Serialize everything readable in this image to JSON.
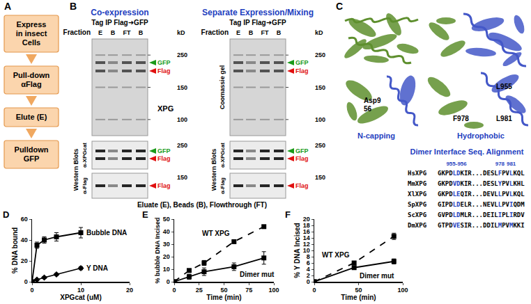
{
  "panel_A": {
    "panel": "A",
    "steps": [
      [
        "Express",
        "in insect",
        "Cells"
      ],
      [
        "Pull-down",
        "αFlag"
      ],
      [
        "Elute (E)"
      ],
      [
        "Pulldown",
        "GFP"
      ]
    ]
  },
  "panel_B": {
    "panel": "B",
    "gels": [
      {
        "title": "Co-expression",
        "tag": "Tag IP Flag➜GFP",
        "fraction": "Fraction",
        "lanes": [
          "E",
          "B",
          "FT",
          "B"
        ],
        "kd_unit": "kD",
        "protein": "XPG",
        "coomassie": {
          "markers": [
            250,
            150,
            100
          ],
          "bands": [
            {
              "name": "GFP",
              "color": "#1a9a1a"
            },
            {
              "name": "Flag",
              "color": "#e01010"
            }
          ]
        },
        "blot_group": "Western Blots",
        "blots": [
          {
            "antibody": "α-XPGcat",
            "markers": [
              250
            ],
            "bands": [
              {
                "name": "GFP",
                "color": "#1a9a1a"
              },
              {
                "name": "Flag",
                "color": "#e01010"
              }
            ]
          },
          {
            "antibody": "α-Flag",
            "markers": [
              150
            ],
            "bands": [
              {
                "name": "Flag",
                "color": "#e01010"
              }
            ]
          }
        ]
      },
      {
        "title": "Separate Expression/Mixing",
        "tag": "Tag IP Flag➜GFP",
        "fraction": "Fraction",
        "lanes": [
          "E",
          "B",
          "FT",
          "B"
        ],
        "kd_unit": "kD",
        "stain": "Coomassie gel",
        "coomassie": {
          "markers": [
            250,
            150,
            100
          ],
          "bands": [
            {
              "name": "GFP",
              "color": "#1a9a1a"
            },
            {
              "name": "Flag",
              "color": "#e01010"
            }
          ]
        },
        "blot_group": "Western Blots",
        "blots": [
          {
            "antibody": "α-XPGcat",
            "markers": [
              250
            ],
            "bands": [
              {
                "name": "GFP",
                "color": "#1a9a1a"
              },
              {
                "name": "Flag",
                "color": "#e01010"
              }
            ]
          },
          {
            "antibody": "α-Flag",
            "markers": [
              150
            ],
            "bands": [
              {
                "name": "Flag",
                "color": "#e01010"
              }
            ]
          }
        ]
      }
    ],
    "caption": "Eluate (E), Beads (B), Flowthrough (FT)"
  },
  "panel_C": {
    "panel": "C",
    "residue_left": [
      "Asp9",
      "56"
    ],
    "residues_right": [
      "L955",
      "F978",
      "L981"
    ],
    "views": [
      "N-capping",
      "Hydrophobic"
    ],
    "alignment_title": "Dimer Interface Seq. Alignment",
    "positions": [
      "955-956",
      "978",
      "981"
    ],
    "sequences": [
      {
        "name": "HsXPG",
        "segments": [
          {
            "t": "GKPD"
          },
          {
            "t": "LD",
            "highlight": true
          },
          {
            "t": "KIR...DESL"
          },
          {
            "t": "F",
            "highlight": true
          },
          {
            "t": "PV"
          },
          {
            "t": "L",
            "highlight": true
          },
          {
            "t": "KQL"
          }
        ]
      },
      {
        "name": "MmXPG",
        "segments": [
          {
            "t": "GKPD"
          },
          {
            "t": "VD",
            "highlight": true
          },
          {
            "t": "KIR...DESL"
          },
          {
            "t": "Y",
            "highlight": true
          },
          {
            "t": "PV"
          },
          {
            "t": "L",
            "highlight": true
          },
          {
            "t": "KHL"
          }
        ]
      },
      {
        "name": "XlXPG",
        "segments": [
          {
            "t": "GKPD"
          },
          {
            "t": "LE",
            "highlight": true
          },
          {
            "t": "QIR...DEVL"
          },
          {
            "t": "L",
            "highlight": true
          },
          {
            "t": "PV"
          },
          {
            "t": "L",
            "highlight": true
          },
          {
            "t": "KQL"
          }
        ]
      },
      {
        "name": "SpXPG",
        "segments": [
          {
            "t": "GIPD"
          },
          {
            "t": "LD",
            "highlight": true
          },
          {
            "t": "ELR...NEVL"
          },
          {
            "t": "L",
            "highlight": true
          },
          {
            "t": "PV"
          },
          {
            "t": "I",
            "highlight": true
          },
          {
            "t": "QDM"
          }
        ]
      },
      {
        "name": "ScXPG",
        "segments": [
          {
            "t": "GVPD"
          },
          {
            "t": "LD",
            "highlight": true
          },
          {
            "t": "MLR...DEIL"
          },
          {
            "t": "I",
            "highlight": true
          },
          {
            "t": "PL"
          },
          {
            "t": "I",
            "highlight": true
          },
          {
            "t": "RDV"
          }
        ]
      },
      {
        "name": "DmXPG",
        "segments": [
          {
            "t": "GTPD"
          },
          {
            "t": "VE",
            "highlight": true
          },
          {
            "t": "SIR...DDIL"
          },
          {
            "t": "M",
            "highlight": true
          },
          {
            "t": "PV"
          },
          {
            "t": "M",
            "highlight": true
          },
          {
            "t": "KKI"
          }
        ]
      }
    ]
  },
  "chart_data": [
    {
      "panel": "D",
      "type": "scatter",
      "xlabel": "XPGcat (uM)",
      "ylabel": "% DNA bound",
      "x": [
        0,
        1,
        2.5,
        5,
        10
      ],
      "xlim": [
        0,
        20
      ],
      "xticks": [
        0,
        10,
        20
      ],
      "ylim": [
        0,
        60
      ],
      "yticks": [
        0,
        20,
        40,
        60
      ],
      "grid": false,
      "series": [
        {
          "name": "Bubble DNA",
          "color": "#000000",
          "marker": "square",
          "line_style": "solid",
          "values": [
            0,
            35,
            40,
            43,
            47
          ],
          "errors": [
            0,
            3,
            3,
            4,
            5
          ]
        },
        {
          "name": "Y DNA",
          "color": "#000000",
          "marker": "diamond",
          "line_style": "solid",
          "values": [
            0,
            2,
            4,
            7,
            13
          ],
          "errors": [
            0,
            0.5,
            1,
            1,
            1.5
          ]
        }
      ]
    },
    {
      "panel": "E",
      "type": "scatter",
      "xlabel": "Time (min)",
      "ylabel": "% bubble DNA Incised",
      "x": [
        0,
        15,
        30,
        60,
        90
      ],
      "xlim": [
        0,
        100
      ],
      "xticks": [
        0,
        25,
        50,
        75,
        100
      ],
      "ylim": [
        0,
        50
      ],
      "yticks": [
        0,
        10,
        20,
        30,
        40,
        50
      ],
      "grid": false,
      "series": [
        {
          "name": "WT XPG",
          "color": "#000000",
          "marker": "square",
          "line_style": "dash",
          "values": [
            0,
            9,
            15,
            32,
            44
          ],
          "errors": [
            0,
            1,
            2,
            1,
            1
          ]
        },
        {
          "name": "Dimer mut",
          "color": "#000000",
          "marker": "square",
          "line_style": "solid",
          "values": [
            0,
            4,
            8,
            12,
            19
          ],
          "errors": [
            0,
            2,
            3,
            3,
            5
          ]
        }
      ]
    },
    {
      "panel": "F",
      "type": "scatter",
      "xlabel": "Time (min)",
      "ylabel": "% Y DNA Incised",
      "x": [
        0,
        45,
        90
      ],
      "xlim": [
        0,
        100
      ],
      "xticks": [
        0,
        50,
        100
      ],
      "ylim": [
        0,
        20
      ],
      "yticks": [
        0,
        2,
        4,
        6,
        8,
        10,
        12,
        14,
        16,
        18,
        20
      ],
      "grid": false,
      "series": [
        {
          "name": "WT XPG",
          "color": "#000000",
          "marker": "square",
          "line_style": "dash",
          "values": [
            0,
            6,
            14.5
          ],
          "errors": [
            0,
            0.5,
            1
          ]
        },
        {
          "name": "Dimer mut",
          "color": "#000000",
          "marker": "square",
          "line_style": "solid",
          "values": [
            0,
            4.5,
            6.5
          ],
          "errors": [
            0,
            0.5,
            0.8
          ]
        }
      ]
    }
  ]
}
